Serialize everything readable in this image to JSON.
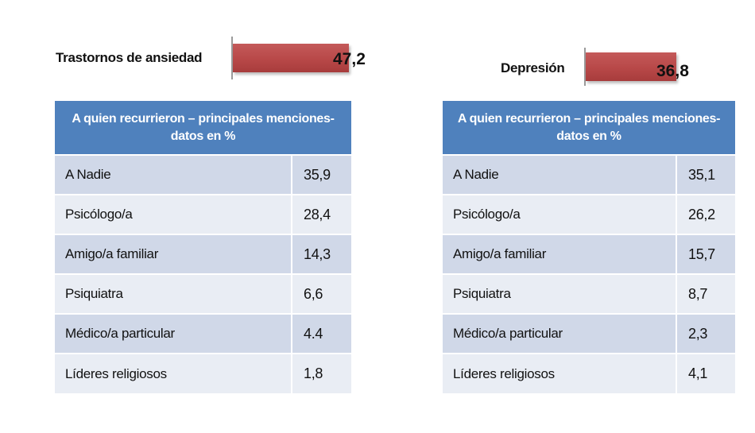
{
  "chart_data": [
    {
      "type": "table",
      "indicator": {
        "label": "Trastornos de ansiedad",
        "value": 47.2,
        "value_text": "47,2",
        "bar_color": "#b84848"
      },
      "title": "A quien recurrieron – principales menciones- datos en %",
      "header_color": "#4f81bd",
      "rows": [
        {
          "category": "A Nadie",
          "value": "35,9"
        },
        {
          "category": "Psicólogo/a",
          "value": "28,4"
        },
        {
          "category": "Amigo/a familiar",
          "value": "14,3"
        },
        {
          "category": "Psiquiatra",
          "value": "6,6"
        },
        {
          "category": "Médico/a particular",
          "value": "4.4"
        },
        {
          "category": "Líderes religiosos",
          "value": "1,8"
        }
      ]
    },
    {
      "type": "table",
      "indicator": {
        "label": "Depresión",
        "value": 36.8,
        "value_text": "36,8",
        "bar_color": "#b84848"
      },
      "title": "A quien recurrieron – principales menciones- datos en %",
      "header_color": "#4f81bd",
      "rows": [
        {
          "category": "A Nadie",
          "value": "35,1"
        },
        {
          "category": "Psicólogo/a",
          "value": "26,2"
        },
        {
          "category": "Amigo/a familiar",
          "value": "15,7"
        },
        {
          "category": "Psiquiatra",
          "value": "8,7"
        },
        {
          "category": "Médico/a particular",
          "value": "2,3"
        },
        {
          "category": "Líderes religiosos",
          "value": "4,1"
        }
      ]
    }
  ]
}
